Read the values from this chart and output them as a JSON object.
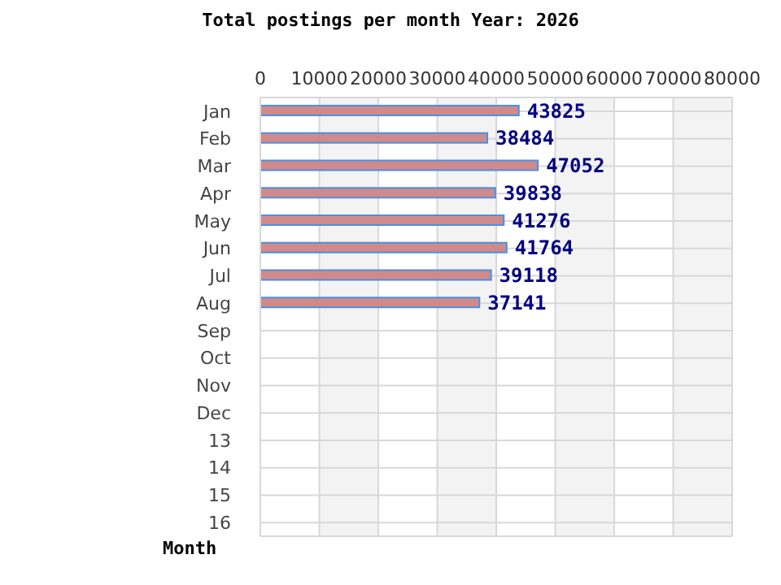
{
  "chart_data": {
    "type": "bar",
    "orientation": "horizontal",
    "title": "Total postings per month Year: 2026",
    "ylabel": "Month",
    "categories": [
      "Jan",
      "Feb",
      "Mar",
      "Apr",
      "May",
      "Jun",
      "Jul",
      "Aug",
      "Sep",
      "Oct",
      "Nov",
      "Dec",
      "13",
      "14",
      "15",
      "16"
    ],
    "values": [
      43825,
      38484,
      47052,
      39838,
      41276,
      41764,
      39118,
      37141,
      null,
      null,
      null,
      null,
      null,
      null,
      null,
      null
    ],
    "color": "#d08a8a",
    "xlim": [
      0,
      80000
    ],
    "xticks": [
      0,
      10000,
      20000,
      30000,
      40000,
      50000,
      60000,
      70000,
      80000
    ],
    "grid": true,
    "data_labels": true
  }
}
